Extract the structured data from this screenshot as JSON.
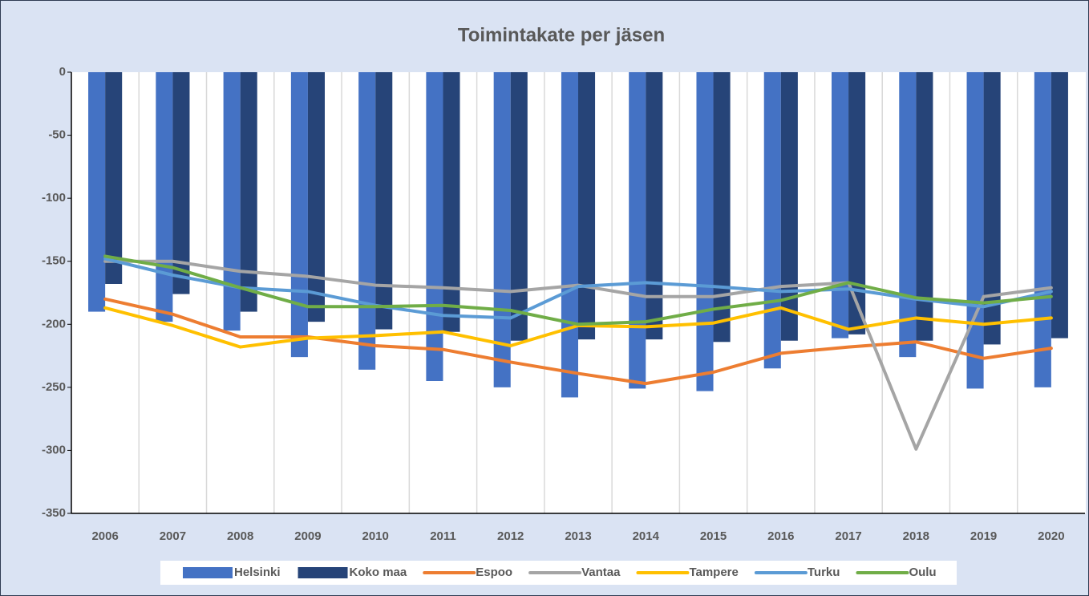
{
  "chart_data": {
    "type": "bar",
    "title": "Toimintakate per jäsen",
    "categories": [
      "2006",
      "2007",
      "2008",
      "2009",
      "2010",
      "2011",
      "2012",
      "2013",
      "2014",
      "2015",
      "2016",
      "2017",
      "2018",
      "2019",
      "2020"
    ],
    "ylim": [
      -350,
      0
    ],
    "yticks": [
      0,
      -50,
      -100,
      -150,
      -200,
      -250,
      -300,
      -350
    ],
    "grid": true,
    "legend": "bottom",
    "series": [
      {
        "name": "Helsinki",
        "type": "bar",
        "color": "#4472c4",
        "values": [
          -190,
          -198,
          -205,
          -226,
          -236,
          -245,
          -250,
          -258,
          -251,
          -253,
          -235,
          -211,
          -226,
          -251,
          -250
        ]
      },
      {
        "name": "Koko maa",
        "type": "bar",
        "color": "#264478",
        "values": [
          -168,
          -176,
          -190,
          -198,
          -204,
          -206,
          -213,
          -212,
          -212,
          -214,
          -213,
          -208,
          -213,
          -216,
          -211
        ]
      },
      {
        "name": "Espoo",
        "type": "line",
        "color": "#ed7d31",
        "values": [
          -180,
          -192,
          -210,
          -210,
          -217,
          -220,
          -230,
          -239,
          -247,
          -238,
          -223,
          -218,
          -214,
          -227,
          -219
        ]
      },
      {
        "name": "Vantaa",
        "type": "line",
        "color": "#a5a5a5",
        "values": [
          -150,
          -150,
          -158,
          -162,
          -169,
          -171,
          -174,
          -169,
          -178,
          -178,
          -170,
          -167,
          -299,
          -178,
          -171
        ]
      },
      {
        "name": "Tampere",
        "type": "line",
        "color": "#ffc000",
        "values": [
          -187,
          -201,
          -218,
          -211,
          -209,
          -206,
          -217,
          -201,
          -202,
          -199,
          -187,
          -204,
          -195,
          -200,
          -195
        ]
      },
      {
        "name": "Turku",
        "type": "line",
        "color": "#5b9bd5",
        "values": [
          -148,
          -161,
          -171,
          -174,
          -185,
          -193,
          -195,
          -170,
          -167,
          -170,
          -174,
          -172,
          -180,
          -186,
          -174
        ]
      },
      {
        "name": "Oulu",
        "type": "line",
        "color": "#70ad47",
        "values": [
          -146,
          -155,
          -171,
          -186,
          -186,
          -185,
          -189,
          -200,
          -198,
          -188,
          -181,
          -167,
          -179,
          -183,
          -178
        ]
      }
    ]
  }
}
